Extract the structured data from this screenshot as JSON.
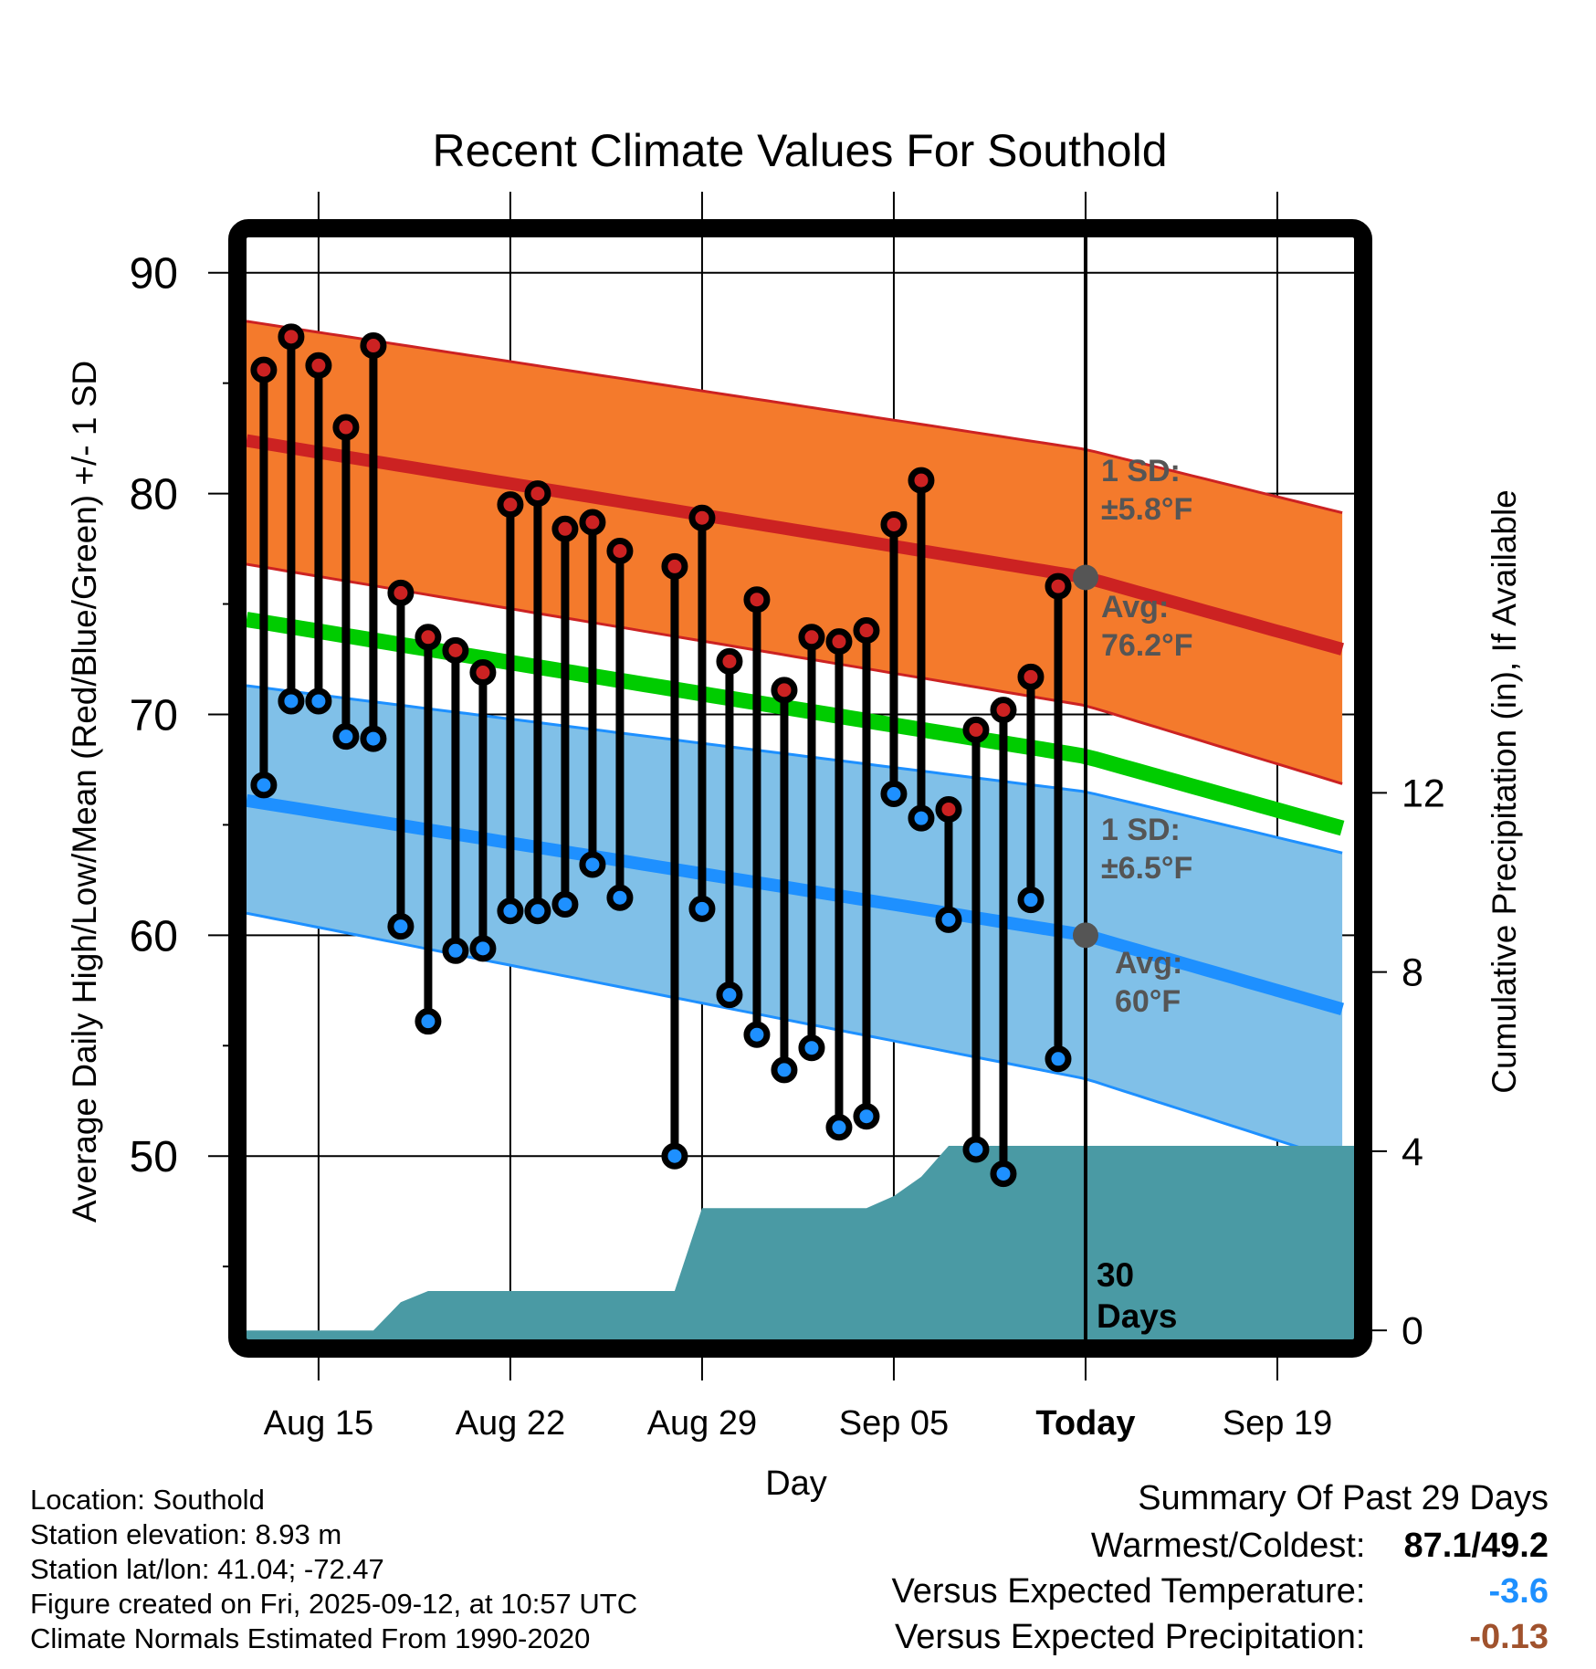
{
  "chart_data": {
    "type": "line",
    "title": "Recent Climate Values For Southold",
    "xlabel": "Day",
    "ylabel": "Average Daily High/Low/Mean (Red/Blue/Green) +/- 1 SD",
    "y2label": "Cumulative Precipitation (in), If Available",
    "ylim": [
      41.7,
      91.6
    ],
    "y2lim": [
      -0.2,
      24.4
    ],
    "yticks": [
      90,
      80,
      70,
      60,
      50
    ],
    "y2ticks": [
      0,
      4,
      8,
      12
    ],
    "x_reference_date": "Aug 15",
    "xticks": [
      {
        "label": "Aug 15",
        "day": 0
      },
      {
        "label": "Aug 22",
        "day": 7
      },
      {
        "label": "Aug 29",
        "day": 14
      },
      {
        "label": "Sep 05",
        "day": 21
      },
      {
        "label": "Today",
        "day": 28,
        "bold": true
      },
      {
        "label": "Sep 19",
        "day": 35
      }
    ],
    "xlim_days": [
      -2.63,
      37.8
    ],
    "grid": true,
    "today_day": 28,
    "today_marker_label": [
      "30",
      "Days"
    ],
    "normals": {
      "days": [
        -2.63,
        28,
        37.8
      ],
      "high_upper": [
        87.8,
        82.0,
        79.0
      ],
      "high_mean": [
        82.4,
        76.2,
        72.8
      ],
      "high_lower": [
        76.8,
        70.4,
        66.7
      ],
      "mean": [
        74.3,
        68.1,
        64.7
      ],
      "low_upper": [
        71.3,
        66.5,
        63.6
      ],
      "low_mean": [
        66.1,
        60.0,
        56.5
      ],
      "low_lower": [
        61.0,
        53.5,
        49.6
      ]
    },
    "annotations": {
      "high_sd": [
        "1 SD:",
        "±5.8°F"
      ],
      "high_avg": [
        "Avg:",
        "76.2°F"
      ],
      "low_sd": [
        "1 SD:",
        "±6.5°F"
      ],
      "low_avg": [
        "Avg:",
        "60°F"
      ],
      "high_avg_value": 76.2,
      "low_avg_value": 60.0
    },
    "observations": [
      {
        "date": "Aug 13",
        "day": -2,
        "high": 85.6,
        "low": 66.8
      },
      {
        "date": "Aug 14",
        "day": -1,
        "high": 87.1,
        "low": 70.6
      },
      {
        "date": "Aug 15",
        "day": 0,
        "high": 85.8,
        "low": 70.6
      },
      {
        "date": "Aug 16",
        "day": 1,
        "high": 83.0,
        "low": 69.0
      },
      {
        "date": "Aug 17",
        "day": 2,
        "high": 86.7,
        "low": 68.9
      },
      {
        "date": "Aug 18",
        "day": 3,
        "high": 75.5,
        "low": 60.4
      },
      {
        "date": "Aug 19",
        "day": 4,
        "high": 73.5,
        "low": 56.1
      },
      {
        "date": "Aug 20",
        "day": 5,
        "high": 72.9,
        "low": 59.3
      },
      {
        "date": "Aug 21",
        "day": 6,
        "high": 71.9,
        "low": 59.4
      },
      {
        "date": "Aug 22",
        "day": 7,
        "high": 79.5,
        "low": 61.1
      },
      {
        "date": "Aug 23",
        "day": 8,
        "high": 80.0,
        "low": 61.1
      },
      {
        "date": "Aug 24",
        "day": 9,
        "high": 78.4,
        "low": 61.4
      },
      {
        "date": "Aug 25",
        "day": 10,
        "high": 78.7,
        "low": 63.2
      },
      {
        "date": "Aug 26",
        "day": 11,
        "high": 77.4,
        "low": 61.7
      },
      {
        "date": "Aug 28",
        "day": 13,
        "high": 76.7,
        "low": 50.0
      },
      {
        "date": "Aug 29",
        "day": 14,
        "high": 78.9,
        "low": 61.2
      },
      {
        "date": "Aug 30",
        "day": 15,
        "high": 72.4,
        "low": 57.3
      },
      {
        "date": "Aug 31",
        "day": 16,
        "high": 75.2,
        "low": 55.5
      },
      {
        "date": "Sep 01",
        "day": 17,
        "high": 71.1,
        "low": 53.9
      },
      {
        "date": "Sep 02",
        "day": 18,
        "high": 73.5,
        "low": 54.9
      },
      {
        "date": "Sep 03",
        "day": 19,
        "high": 73.3,
        "low": 51.3
      },
      {
        "date": "Sep 04",
        "day": 20,
        "high": 73.8,
        "low": 51.8
      },
      {
        "date": "Sep 05",
        "day": 21,
        "high": 78.6,
        "low": 66.4
      },
      {
        "date": "Sep 06",
        "day": 22,
        "high": 80.6,
        "low": 65.3
      },
      {
        "date": "Sep 07",
        "day": 23,
        "high": 65.7,
        "low": 60.7
      },
      {
        "date": "Sep 08",
        "day": 24,
        "high": 69.3,
        "low": 50.3
      },
      {
        "date": "Sep 09",
        "day": 25,
        "high": 70.2,
        "low": 49.2
      },
      {
        "date": "Sep 10",
        "day": 26,
        "high": 71.7,
        "low": 61.6
      },
      {
        "date": "Sep 11",
        "day": 27,
        "high": 75.8,
        "low": 54.4
      }
    ],
    "precipitation": {
      "days": [
        -2.63,
        2,
        3,
        4,
        13,
        14,
        20,
        21,
        22,
        23,
        37.8
      ],
      "cumulative_in": [
        0,
        0,
        0.63,
        0.88,
        0.88,
        2.73,
        2.73,
        3.0,
        3.43,
        4.12,
        4.12
      ]
    },
    "colors": {
      "high_band": "#F47A2C",
      "high_line": "#CC2222",
      "mean_line": "#00CC00",
      "low_band": "#80C0E8",
      "low_line": "#1E90FF",
      "precip": "#4A9AA4",
      "annotation": "#555555",
      "avg_marker": "#555555"
    }
  },
  "footer": {
    "location": "Location: Southold",
    "elevation": "Station elevation: 8.93 m",
    "latlon": "Station lat/lon: 41.04; -72.47",
    "created": "Figure created on Fri, 2025-09-12, at 10:57 UTC",
    "normals": "Climate Normals Estimated From 1990-2020"
  },
  "summary": {
    "heading": "Summary Of Past 29 Days",
    "warmest_coldest_label": "Warmest/Coldest:",
    "warmest_coldest_value": "87.1/49.2",
    "temp_label": "Versus Expected Temperature:",
    "temp_value": "-3.6",
    "temp_color": "#1E90FF",
    "precip_label": "Versus Expected Precipitation:",
    "precip_value": "-0.13",
    "precip_color": "#A0522D"
  }
}
